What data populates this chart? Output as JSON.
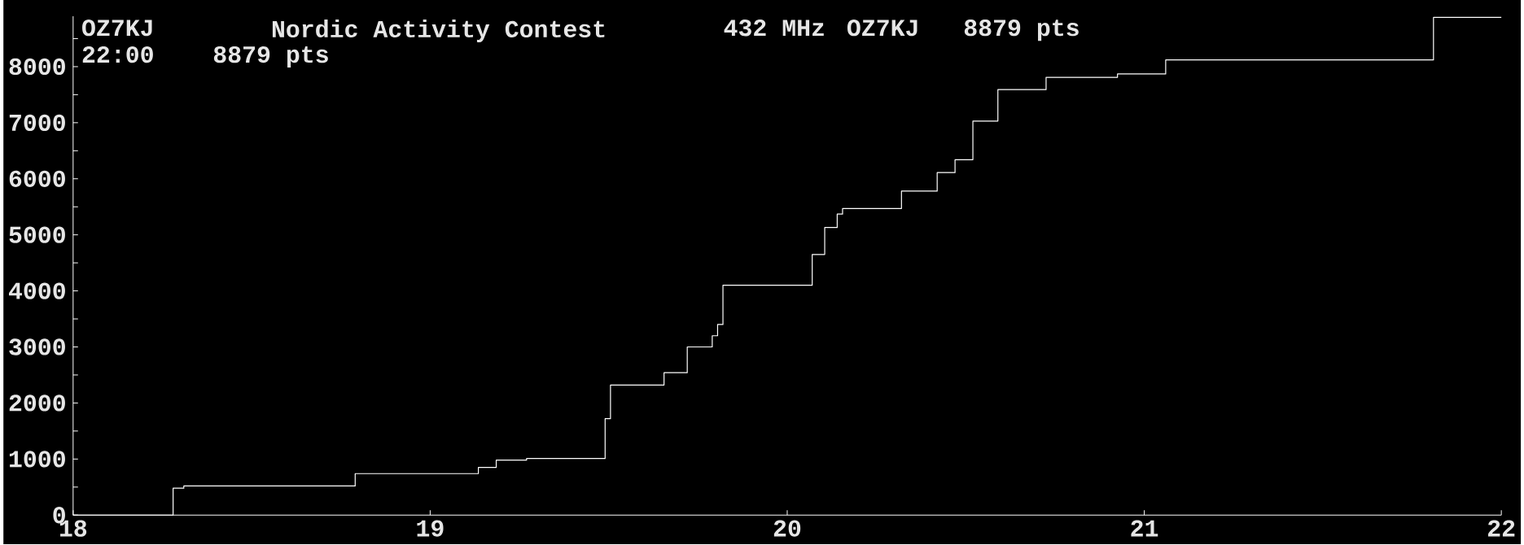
{
  "chart_data": {
    "type": "step",
    "title": "Nordic Activity Contest",
    "annotations": [
      "OZ7KJ",
      "432 MHz",
      "OZ7KJ",
      "8879 pts",
      "22:00",
      "8879 pts"
    ],
    "x": [
      18.0,
      18.28,
      18.31,
      18.79,
      19.135,
      19.185,
      19.27,
      19.49,
      19.505,
      19.655,
      19.72,
      19.79,
      19.805,
      19.82,
      20.07,
      20.105,
      20.14,
      20.155,
      20.32,
      20.42,
      20.47,
      20.52,
      20.59,
      20.725,
      20.925,
      21.06,
      21.81,
      22
    ],
    "series": [
      {
        "color": "#ffffff",
        "values": [
          0,
          480,
          520,
          740,
          850,
          980,
          1010,
          1720,
          2320,
          2540,
          3000,
          3200,
          3400,
          4100,
          4650,
          5130,
          5370,
          5470,
          5780,
          6110,
          6340,
          7030,
          7590,
          7810,
          7870,
          8120,
          8879,
          8879
        ]
      }
    ],
    "xlim": [
      18,
      22
    ],
    "ylim": [
      0,
      8900
    ],
    "xticks": [
      18,
      19,
      20,
      21,
      22
    ],
    "yticks": [
      0,
      {
        "value": 500,
        "label": null
      },
      1000,
      {
        "value": 1500,
        "label": null
      },
      2000,
      {
        "value": 2500,
        "label": null
      },
      3000,
      {
        "value": 3500,
        "label": null
      },
      4000,
      {
        "value": 4500,
        "label": null
      },
      5000,
      {
        "value": 5500,
        "label": null
      },
      6000,
      {
        "value": 6500,
        "label": null
      },
      7000,
      {
        "value": 7500,
        "label": null
      },
      8000,
      {
        "value": 8500,
        "label": null
      }
    ],
    "marker": "none",
    "line_style": "solid"
  }
}
